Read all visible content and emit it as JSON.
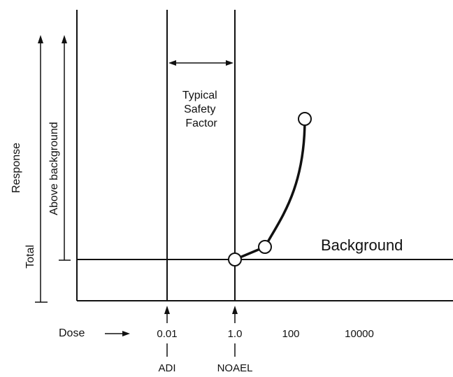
{
  "chart_data": {
    "type": "line",
    "title": "",
    "xlabel": "Dose",
    "ylabel": "Response",
    "x_scale": "log",
    "x_ticks": [
      "0.01",
      "1.0",
      "100",
      "10000"
    ],
    "x_tick_values": [
      0.01,
      1,
      100,
      10000
    ],
    "y_axis_labels": {
      "total": "Total",
      "above_background": "Above background"
    },
    "background_label": "Background",
    "markers": {
      "adi": {
        "label": "ADI",
        "dose": 0.01
      },
      "noael": {
        "label": "NOAEL",
        "dose": 1.0
      }
    },
    "safety_factor_label": [
      "Typical",
      "Safety",
      "Factor"
    ],
    "series": [
      {
        "x": [
          1.0,
          10,
          100
        ],
        "y": [
          0,
          0.1,
          1.0
        ]
      }
    ],
    "grid": false
  }
}
